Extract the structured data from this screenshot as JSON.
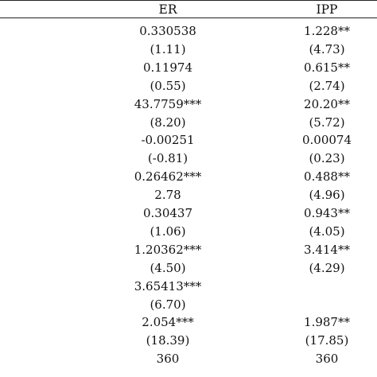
{
  "table": {
    "headers": {
      "er": "ER",
      "ipp": "IPP"
    },
    "rows": [
      {
        "er": "0.330538",
        "ipp": "1.228**"
      },
      {
        "er": "(1.11)",
        "ipp": "(4.73)"
      },
      {
        "er": "0.11974",
        "ipp": "0.615**"
      },
      {
        "er": "(0.55)",
        "ipp": "(2.74)"
      },
      {
        "er": "43.7759***",
        "ipp": "20.20**"
      },
      {
        "er": "(8.20)",
        "ipp": "(5.72)"
      },
      {
        "er": "-0.00251",
        "ipp": "0.00074"
      },
      {
        "er": "(-0.81)",
        "ipp": "(0.23)"
      },
      {
        "er": "0.26462***",
        "ipp": "0.488**"
      },
      {
        "er": "2.78",
        "ipp": "(4.96)"
      },
      {
        "er": "0.30437",
        "ipp": "0.943**"
      },
      {
        "er": "(1.06)",
        "ipp": "(4.05)"
      },
      {
        "er": "1.20362***",
        "ipp": "3.414**"
      },
      {
        "er": "(4.50)",
        "ipp": "(4.29)"
      },
      {
        "er": "3.65413***",
        "ipp": ""
      },
      {
        "er": "(6.70)",
        "ipp": ""
      },
      {
        "er": "2.054***",
        "ipp": "1.987**"
      },
      {
        "er": "(18.39)",
        "ipp": "(17.85)"
      },
      {
        "er": "360",
        "ipp": "360"
      }
    ]
  }
}
